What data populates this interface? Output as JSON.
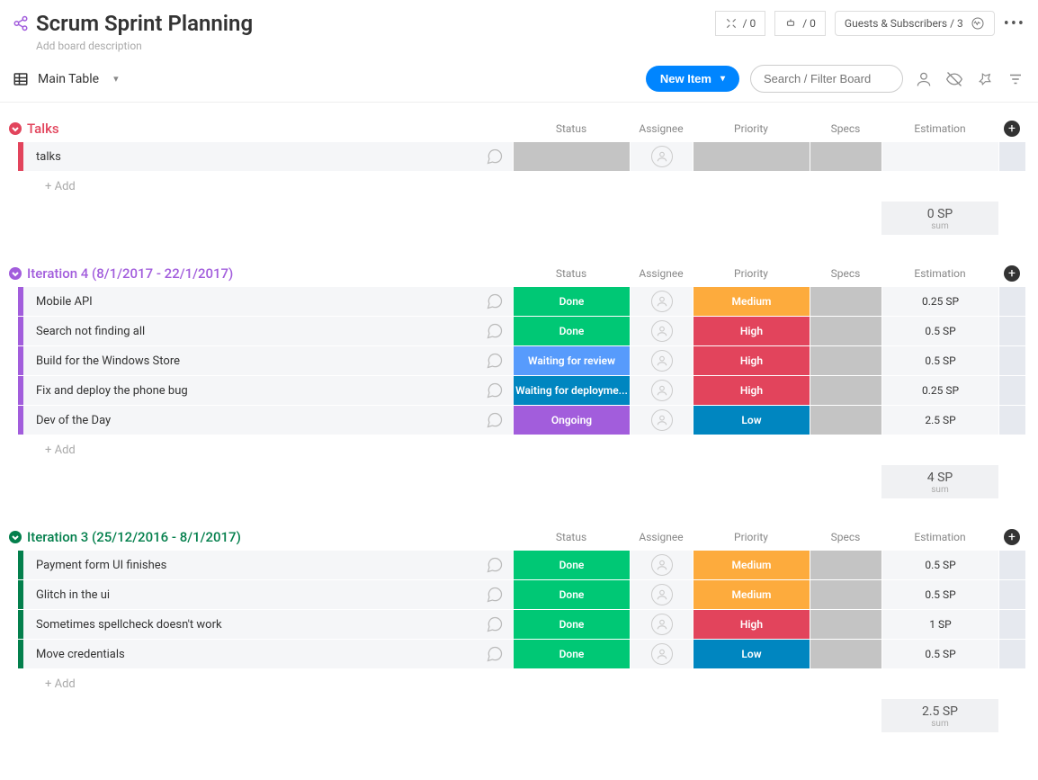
{
  "header": {
    "title": "Scrum Sprint Planning",
    "description_placeholder": "Add board description",
    "badge1_count": "/ 0",
    "badge2_count": "/ 0",
    "guests_label": "Guests & Subscribers / 3"
  },
  "toolbar": {
    "view_label": "Main Table",
    "new_item_label": "New Item",
    "search_placeholder": "Search / Filter Board"
  },
  "columns": {
    "status": "Status",
    "assignee": "Assignee",
    "priority": "Priority",
    "specs": "Specs",
    "estimation": "Estimation"
  },
  "add_row_label": "+ Add",
  "status_colors": {
    "Done": "#00c875",
    "Waiting for review": "#579bfc",
    "Waiting for deployme...": "#0086c0",
    "Ongoing": "#a25ddc"
  },
  "priority_colors": {
    "Medium": "#fdab3d",
    "High": "#e2445c",
    "Low": "#0086c0"
  },
  "groups": [
    {
      "id": "talks",
      "title": "Talks",
      "color": "#e2445c",
      "rows": [
        {
          "name": "talks",
          "status": "",
          "priority": "",
          "estimation": ""
        }
      ],
      "footer_value": "0 SP",
      "footer_sub": "sum"
    },
    {
      "id": "iter4",
      "title": "Iteration 4 (8/1/2017 - 22/1/2017)",
      "color": "#a25ddc",
      "rows": [
        {
          "name": "Mobile API",
          "status": "Done",
          "priority": "Medium",
          "estimation": "0.25 SP"
        },
        {
          "name": "Search not finding all",
          "status": "Done",
          "priority": "High",
          "estimation": "0.5 SP"
        },
        {
          "name": "Build for the Windows Store",
          "status": "Waiting for review",
          "priority": "High",
          "estimation": "0.5 SP"
        },
        {
          "name": "Fix and deploy the phone bug",
          "status": "Waiting for deployme...",
          "priority": "High",
          "estimation": "0.25 SP"
        },
        {
          "name": "Dev of the Day",
          "status": "Ongoing",
          "priority": "Low",
          "estimation": "2.5 SP"
        }
      ],
      "footer_value": "4 SP",
      "footer_sub": "sum"
    },
    {
      "id": "iter3",
      "title": "Iteration 3 (25/12/2016 - 8/1/2017)",
      "color": "#037f4c",
      "rows": [
        {
          "name": "Payment form UI finishes",
          "status": "Done",
          "priority": "Medium",
          "estimation": "0.5 SP"
        },
        {
          "name": "Glitch in the ui",
          "status": "Done",
          "priority": "Medium",
          "estimation": "0.5 SP"
        },
        {
          "name": "Sometimes spellcheck doesn't work",
          "status": "Done",
          "priority": "High",
          "estimation": "1 SP"
        },
        {
          "name": "Move credentials",
          "status": "Done",
          "priority": "Low",
          "estimation": "0.5 SP"
        }
      ],
      "footer_value": "2.5 SP",
      "footer_sub": "sum"
    }
  ]
}
